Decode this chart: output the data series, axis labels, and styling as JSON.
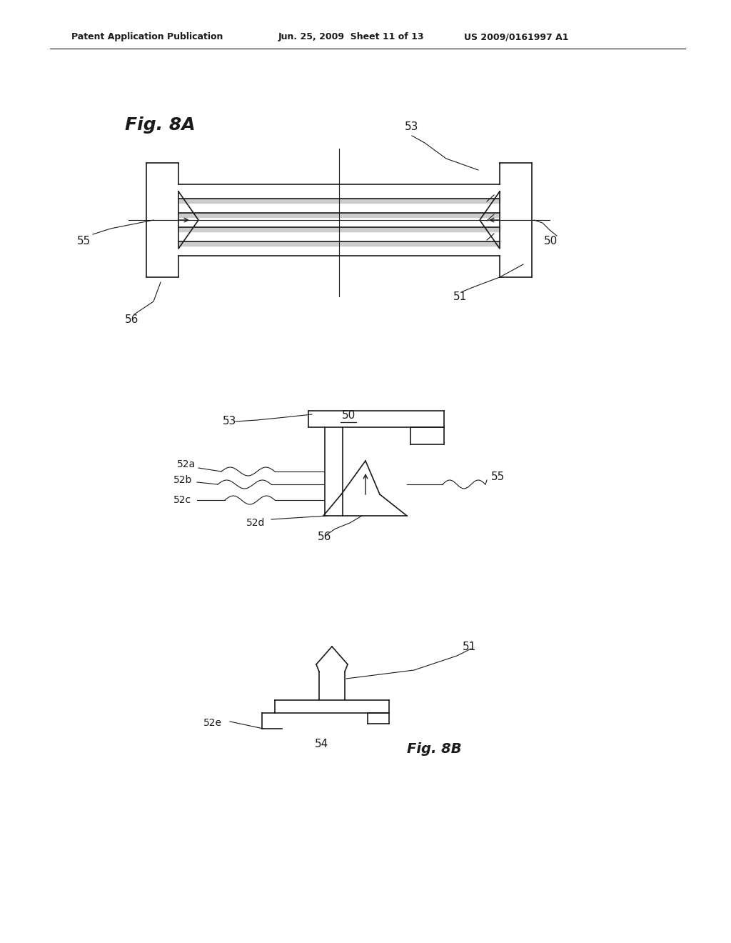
{
  "bg_color": "#ffffff",
  "line_color": "#1a1a1a",
  "header_left": "Patent Application Publication",
  "header_center": "Jun. 25, 2009  Sheet 11 of 13",
  "header_right": "US 2009/0161997 A1",
  "fig8a_label": "Fig. 8A",
  "fig8b_label": "Fig. 8B"
}
